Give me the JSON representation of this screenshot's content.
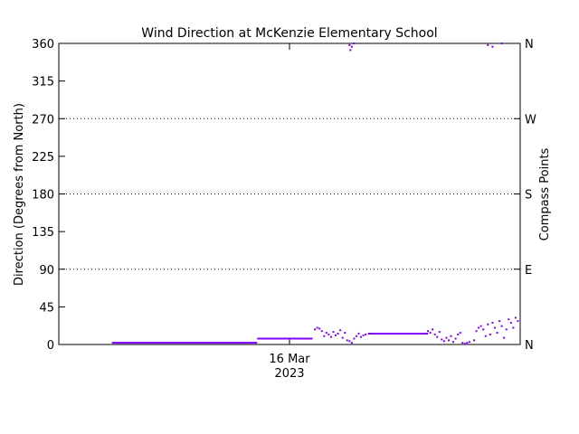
{
  "chart_data": {
    "type": "scatter",
    "title": "Wind Direction at McKenzie Elementary School",
    "ylabel": "Direction (Degrees from North)",
    "ylabel_right": "Compass Points",
    "x_tick_labels": [
      {
        "x": 0.5,
        "line1": "16 Mar",
        "line2": "2023"
      }
    ],
    "xlim": [
      0,
      1
    ],
    "ylim": [
      0,
      360
    ],
    "y_ticks": [
      "0",
      "45",
      "90",
      "135",
      "180",
      "225",
      "270",
      "315",
      "360"
    ],
    "y_tick_values": [
      0,
      45,
      90,
      135,
      180,
      225,
      270,
      315,
      360
    ],
    "right_ticks": [
      {
        "v": 0,
        "label": "N"
      },
      {
        "v": 90,
        "label": "E"
      },
      {
        "v": 180,
        "label": "S"
      },
      {
        "v": 270,
        "label": "W"
      },
      {
        "v": 360,
        "label": "N"
      }
    ],
    "gridlines_dotted": [
      90,
      180,
      270
    ],
    "series_color": "#8000ff",
    "segments": [
      {
        "x0": 0.115,
        "x1": 0.43,
        "y": 2
      },
      {
        "x0": 0.43,
        "x1": 0.55,
        "y": 7
      },
      {
        "x0": 0.67,
        "x1": 0.8,
        "y": 13
      }
    ],
    "points": [
      [
        0.555,
        18
      ],
      [
        0.56,
        20
      ],
      [
        0.565,
        19
      ],
      [
        0.57,
        16
      ],
      [
        0.575,
        10
      ],
      [
        0.58,
        14
      ],
      [
        0.585,
        12
      ],
      [
        0.59,
        9
      ],
      [
        0.595,
        15
      ],
      [
        0.6,
        11
      ],
      [
        0.605,
        13
      ],
      [
        0.61,
        17
      ],
      [
        0.615,
        8
      ],
      [
        0.62,
        14
      ],
      [
        0.625,
        5
      ],
      [
        0.63,
        4
      ],
      [
        0.635,
        2
      ],
      [
        0.64,
        7
      ],
      [
        0.645,
        10
      ],
      [
        0.65,
        13
      ],
      [
        0.655,
        9
      ],
      [
        0.66,
        11
      ],
      [
        0.665,
        12
      ],
      [
        0.63,
        358
      ],
      [
        0.632,
        352
      ],
      [
        0.635,
        356
      ],
      [
        0.64,
        360
      ],
      [
        0.8,
        16
      ],
      [
        0.805,
        14
      ],
      [
        0.81,
        18
      ],
      [
        0.815,
        12
      ],
      [
        0.82,
        9
      ],
      [
        0.825,
        15
      ],
      [
        0.83,
        6
      ],
      [
        0.835,
        4
      ],
      [
        0.84,
        8
      ],
      [
        0.845,
        5
      ],
      [
        0.85,
        10
      ],
      [
        0.855,
        3
      ],
      [
        0.86,
        7
      ],
      [
        0.865,
        12
      ],
      [
        0.87,
        14
      ],
      [
        0.875,
        2
      ],
      [
        0.88,
        1
      ],
      [
        0.885,
        2
      ],
      [
        0.89,
        3
      ],
      [
        0.9,
        5
      ],
      [
        0.905,
        16
      ],
      [
        0.91,
        20
      ],
      [
        0.915,
        22
      ],
      [
        0.92,
        18
      ],
      [
        0.925,
        10
      ],
      [
        0.93,
        24
      ],
      [
        0.935,
        12
      ],
      [
        0.94,
        26
      ],
      [
        0.945,
        20
      ],
      [
        0.95,
        14
      ],
      [
        0.955,
        28
      ],
      [
        0.96,
        22
      ],
      [
        0.965,
        8
      ],
      [
        0.97,
        18
      ],
      [
        0.975,
        30
      ],
      [
        0.98,
        26
      ],
      [
        0.985,
        20
      ],
      [
        0.99,
        32
      ],
      [
        0.995,
        28
      ],
      [
        0.93,
        358
      ],
      [
        0.94,
        356
      ],
      [
        0.96,
        360
      ]
    ]
  }
}
